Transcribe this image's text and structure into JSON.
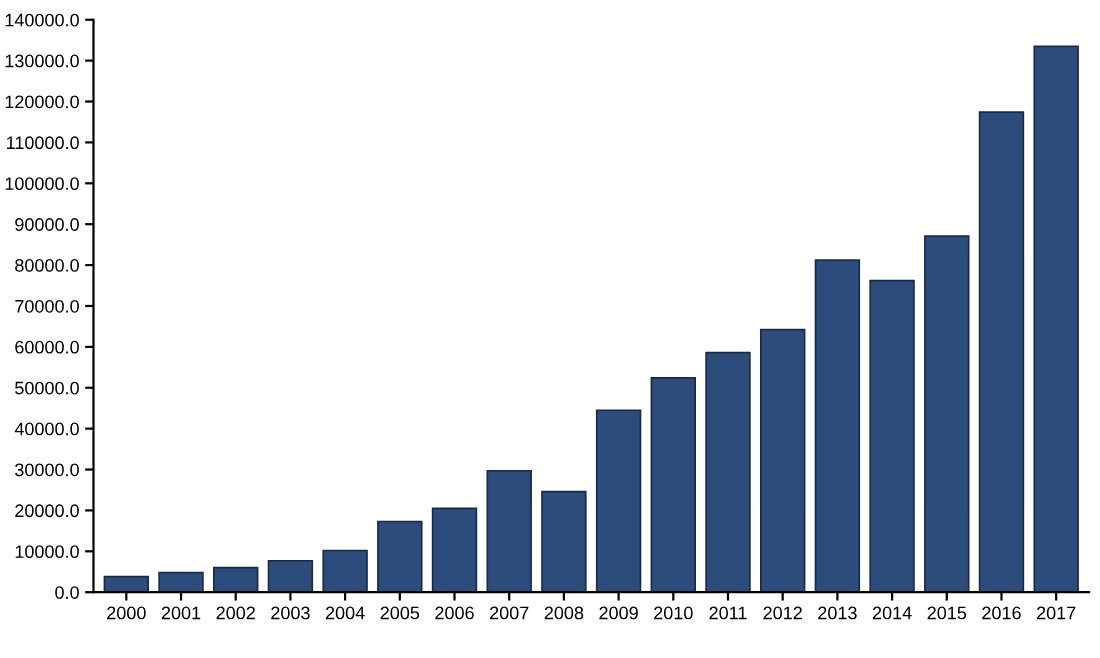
{
  "chart_data": {
    "type": "bar",
    "categories": [
      "2000",
      "2001",
      "2002",
      "2003",
      "2004",
      "2005",
      "2006",
      "2007",
      "2008",
      "2009",
      "2010",
      "2011",
      "2012",
      "2013",
      "2014",
      "2015",
      "2016",
      "2017"
    ],
    "values": [
      3800,
      4800,
      6000,
      7700,
      10200,
      17300,
      20500,
      29700,
      24600,
      44500,
      52400,
      58600,
      64200,
      81200,
      76200,
      87100,
      117400,
      133500
    ],
    "color": "#2c4c7c",
    "ylim": [
      0,
      140000
    ],
    "yticks": [
      {
        "value": 0,
        "label": "0.0"
      },
      {
        "value": 10000,
        "label": "10000.0"
      },
      {
        "value": 20000,
        "label": "20000.0"
      },
      {
        "value": 30000,
        "label": "30000.0"
      },
      {
        "value": 40000,
        "label": "40000.0"
      },
      {
        "value": 50000,
        "label": "50000.0"
      },
      {
        "value": 60000,
        "label": "60000.0"
      },
      {
        "value": 70000,
        "label": "70000.0"
      },
      {
        "value": 80000,
        "label": "80000.0"
      },
      {
        "value": 90000,
        "label": "90000.0"
      },
      {
        "value": 100000,
        "label": "100000.0"
      },
      {
        "value": 110000,
        "label": "110000.0"
      },
      {
        "value": 120000,
        "label": "120000.0"
      },
      {
        "value": 130000,
        "label": "130000.0"
      },
      {
        "value": 140000,
        "label": "140000.0"
      }
    ],
    "grid": false
  }
}
